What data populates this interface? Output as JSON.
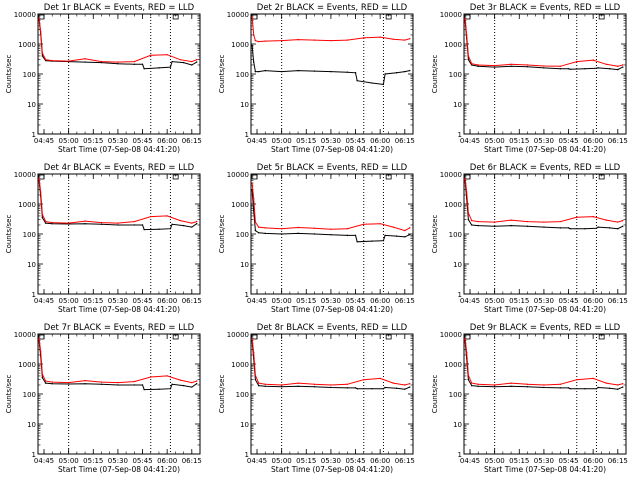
{
  "layout_title": "",
  "common": {
    "xlabel": "Start Time (07-Sep-08 04:41:20)",
    "ylabel": "Counts/sec",
    "x_tick_labels": [
      "04:45",
      "05:00",
      "05:15",
      "05:30",
      "05:45",
      "06:00",
      "06:15"
    ],
    "y_tick_labels": [
      "1",
      "10",
      "100",
      "1000",
      "10000"
    ],
    "colors": {
      "events": "#000000",
      "lld": "#ff0000",
      "axes": "#000000"
    }
  },
  "chart_data": [
    {
      "type": "line",
      "title": "Det 1r BLACK = Events, RED = LLD",
      "xlabel": "Start Time (07-Sep-08 04:41:20)",
      "ylabel": "Counts/sec",
      "x_range": [
        "04:41:20",
        "06:20:00"
      ],
      "ylim": [
        1,
        10000
      ],
      "log_y": true,
      "vertical_dotted_lines": [
        "05:00",
        "05:50",
        "06:02"
      ],
      "series": [
        {
          "name": "Events",
          "color": "#000000",
          "x": [
            "04:42",
            "04:43",
            "04:44",
            "04:46",
            "04:50",
            "05:00",
            "05:10",
            "05:20",
            "05:30",
            "05:40",
            "05:45",
            "05:46",
            "05:55",
            "06:02",
            "06:03",
            "06:10",
            "06:15",
            "06:18"
          ],
          "values": [
            6500,
            2200,
            400,
            280,
            270,
            260,
            250,
            240,
            220,
            210,
            210,
            150,
            160,
            170,
            260,
            240,
            200,
            250
          ]
        },
        {
          "name": "LLD",
          "color": "#ff0000",
          "x": [
            "04:42",
            "04:43",
            "04:44",
            "04:46",
            "04:50",
            "05:00",
            "05:10",
            "05:20",
            "05:30",
            "05:40",
            "05:50",
            "06:00",
            "06:08",
            "06:15",
            "06:18"
          ],
          "values": [
            7000,
            2600,
            500,
            300,
            280,
            270,
            320,
            260,
            250,
            260,
            420,
            440,
            300,
            260,
            300
          ]
        }
      ]
    },
    {
      "type": "line",
      "title": "Det 2r BLACK = Events, RED = LLD",
      "xlabel": "Start Time (07-Sep-08 04:41:20)",
      "ylabel": "Counts/sec",
      "x_range": [
        "04:41:20",
        "06:20:00"
      ],
      "ylim": [
        1,
        10000
      ],
      "log_y": true,
      "vertical_dotted_lines": [
        "05:00",
        "05:50",
        "06:02"
      ],
      "series": [
        {
          "name": "Events",
          "color": "#000000",
          "x": [
            "04:42",
            "04:43",
            "04:44",
            "04:46",
            "04:50",
            "05:00",
            "05:10",
            "05:20",
            "05:30",
            "05:40",
            "05:45",
            "05:46",
            "05:55",
            "06:02",
            "06:03",
            "06:10",
            "06:15",
            "06:18"
          ],
          "values": [
            900,
            250,
            120,
            120,
            130,
            120,
            130,
            125,
            120,
            115,
            110,
            60,
            50,
            45,
            100,
            110,
            120,
            130
          ]
        },
        {
          "name": "LLD",
          "color": "#ff0000",
          "x": [
            "04:42",
            "04:43",
            "04:44",
            "04:46",
            "04:50",
            "05:00",
            "05:10",
            "05:20",
            "05:30",
            "05:40",
            "05:50",
            "06:00",
            "06:08",
            "06:15",
            "06:18"
          ],
          "values": [
            8000,
            2000,
            1300,
            1200,
            1250,
            1300,
            1400,
            1350,
            1300,
            1350,
            1600,
            1700,
            1450,
            1350,
            1500
          ]
        }
      ]
    },
    {
      "type": "line",
      "title": "Det 3r BLACK = Events, RED = LLD",
      "xlabel": "Start Time (07-Sep-08 04:41:20)",
      "ylabel": "Counts/sec",
      "x_range": [
        "04:41:20",
        "06:20:00"
      ],
      "ylim": [
        1,
        10000
      ],
      "log_y": true,
      "vertical_dotted_lines": [
        "05:00",
        "05:50",
        "06:02"
      ],
      "series": [
        {
          "name": "Events",
          "color": "#000000",
          "x": [
            "04:42",
            "04:43",
            "04:44",
            "04:46",
            "04:50",
            "05:00",
            "05:10",
            "05:20",
            "05:30",
            "05:40",
            "05:45",
            "05:46",
            "05:55",
            "06:02",
            "06:03",
            "06:10",
            "06:15",
            "06:18"
          ],
          "values": [
            6000,
            1500,
            300,
            200,
            180,
            170,
            180,
            175,
            160,
            150,
            150,
            145,
            150,
            155,
            160,
            150,
            140,
            170
          ]
        },
        {
          "name": "LLD",
          "color": "#ff0000",
          "x": [
            "04:42",
            "04:43",
            "04:44",
            "04:46",
            "04:50",
            "05:00",
            "05:10",
            "05:20",
            "05:30",
            "05:40",
            "05:50",
            "06:00",
            "06:08",
            "06:15",
            "06:18"
          ],
          "values": [
            7000,
            2000,
            400,
            220,
            200,
            190,
            210,
            200,
            185,
            180,
            260,
            290,
            210,
            180,
            200
          ]
        }
      ]
    },
    {
      "type": "line",
      "title": "Det 4r BLACK = Events, RED = LLD",
      "xlabel": "Start Time (07-Sep-08 04:41:20)",
      "ylabel": "Counts/sec",
      "x_range": [
        "04:41:20",
        "06:20:00"
      ],
      "ylim": [
        1,
        10000
      ],
      "log_y": true,
      "vertical_dotted_lines": [
        "05:00",
        "05:50",
        "06:02"
      ],
      "series": [
        {
          "name": "Events",
          "color": "#000000",
          "x": [
            "04:42",
            "04:43",
            "04:44",
            "04:46",
            "04:50",
            "05:00",
            "05:10",
            "05:20",
            "05:30",
            "05:40",
            "05:45",
            "05:46",
            "05:55",
            "06:02",
            "06:03",
            "06:10",
            "06:15",
            "06:18"
          ],
          "values": [
            6000,
            1800,
            350,
            230,
            220,
            215,
            220,
            210,
            200,
            200,
            200,
            140,
            145,
            150,
            210,
            190,
            170,
            220
          ]
        },
        {
          "name": "LLD",
          "color": "#ff0000",
          "x": [
            "04:42",
            "04:43",
            "04:44",
            "04:46",
            "04:50",
            "05:00",
            "05:10",
            "05:20",
            "05:30",
            "05:40",
            "05:50",
            "06:00",
            "06:08",
            "06:15",
            "06:18"
          ],
          "values": [
            7000,
            2500,
            450,
            260,
            240,
            230,
            270,
            240,
            230,
            260,
            380,
            400,
            280,
            230,
            260
          ]
        }
      ]
    },
    {
      "type": "line",
      "title": "Det 5r BLACK = Events, RED = LLD",
      "xlabel": "Start Time (07-Sep-08 04:41:20)",
      "ylabel": "Counts/sec",
      "x_range": [
        "04:41:20",
        "06:20:00"
      ],
      "ylim": [
        1,
        10000
      ],
      "log_y": true,
      "vertical_dotted_lines": [
        "05:00",
        "05:50",
        "06:02"
      ],
      "series": [
        {
          "name": "Events",
          "color": "#000000",
          "x": [
            "04:42",
            "04:43",
            "04:44",
            "04:46",
            "04:50",
            "05:00",
            "05:10",
            "05:20",
            "05:30",
            "05:40",
            "05:45",
            "05:46",
            "05:55",
            "06:02",
            "06:03",
            "06:10",
            "06:15",
            "06:18"
          ],
          "values": [
            3000,
            600,
            130,
            110,
            105,
            100,
            105,
            100,
            95,
            90,
            90,
            55,
            58,
            60,
            90,
            85,
            80,
            95
          ]
        },
        {
          "name": "LLD",
          "color": "#ff0000",
          "x": [
            "04:42",
            "04:43",
            "04:44",
            "04:46",
            "04:50",
            "05:00",
            "05:10",
            "05:20",
            "05:30",
            "05:40",
            "05:50",
            "06:00",
            "06:08",
            "06:15",
            "06:18"
          ],
          "values": [
            5000,
            1500,
            250,
            170,
            160,
            150,
            165,
            155,
            145,
            150,
            210,
            220,
            170,
            130,
            160
          ]
        }
      ]
    },
    {
      "type": "line",
      "title": "Det 6r BLACK = Events, RED = LLD",
      "xlabel": "Start Time (07-Sep-08 04:41:20)",
      "ylabel": "Counts/sec",
      "x_range": [
        "04:41:20",
        "06:20:00"
      ],
      "ylim": [
        1,
        10000
      ],
      "log_y": true,
      "vertical_dotted_lines": [
        "05:00",
        "05:50",
        "06:02"
      ],
      "series": [
        {
          "name": "Events",
          "color": "#000000",
          "x": [
            "04:42",
            "04:43",
            "04:44",
            "04:46",
            "04:50",
            "05:00",
            "05:10",
            "05:20",
            "05:30",
            "05:40",
            "05:45",
            "05:46",
            "05:55",
            "06:02",
            "06:03",
            "06:10",
            "06:15",
            "06:18"
          ],
          "values": [
            6000,
            1500,
            300,
            200,
            190,
            180,
            190,
            180,
            170,
            160,
            160,
            150,
            150,
            155,
            170,
            160,
            150,
            180
          ]
        },
        {
          "name": "LLD",
          "color": "#ff0000",
          "x": [
            "04:42",
            "04:43",
            "04:44",
            "04:46",
            "04:50",
            "05:00",
            "05:10",
            "05:20",
            "05:30",
            "05:40",
            "05:50",
            "06:00",
            "06:08",
            "06:15",
            "06:18"
          ],
          "values": [
            7000,
            2500,
            500,
            280,
            260,
            250,
            290,
            260,
            250,
            260,
            360,
            380,
            290,
            250,
            280
          ]
        }
      ]
    },
    {
      "type": "line",
      "title": "Det 7r BLACK = Events, RED = LLD",
      "xlabel": "Start Time (07-Sep-08 04:41:20)",
      "ylabel": "Counts/sec",
      "x_range": [
        "04:41:20",
        "06:20:00"
      ],
      "ylim": [
        1,
        10000
      ],
      "log_y": true,
      "vertical_dotted_lines": [
        "05:00",
        "05:50",
        "06:02"
      ],
      "series": [
        {
          "name": "Events",
          "color": "#000000",
          "x": [
            "04:42",
            "04:43",
            "04:44",
            "04:46",
            "04:50",
            "05:00",
            "05:10",
            "05:20",
            "05:30",
            "05:40",
            "05:45",
            "05:46",
            "05:55",
            "06:02",
            "06:03",
            "06:10",
            "06:15",
            "06:18"
          ],
          "values": [
            6000,
            1800,
            350,
            230,
            220,
            215,
            220,
            210,
            200,
            200,
            200,
            140,
            145,
            150,
            210,
            190,
            170,
            220
          ]
        },
        {
          "name": "LLD",
          "color": "#ff0000",
          "x": [
            "04:42",
            "04:43",
            "04:44",
            "04:46",
            "04:50",
            "05:00",
            "05:10",
            "05:20",
            "05:30",
            "05:40",
            "05:50",
            "06:00",
            "06:08",
            "06:15",
            "06:18"
          ],
          "values": [
            7000,
            2600,
            450,
            270,
            250,
            240,
            280,
            250,
            240,
            260,
            370,
            400,
            290,
            240,
            270
          ]
        }
      ]
    },
    {
      "type": "line",
      "title": "Det 8r BLACK = Events, RED = LLD",
      "xlabel": "Start Time (07-Sep-08 04:41:20)",
      "ylabel": "Counts/sec",
      "x_range": [
        "04:41:20",
        "06:20:00"
      ],
      "ylim": [
        1,
        10000
      ],
      "log_y": true,
      "vertical_dotted_lines": [
        "05:00",
        "05:50",
        "06:02"
      ],
      "series": [
        {
          "name": "Events",
          "color": "#000000",
          "x": [
            "04:42",
            "04:43",
            "04:44",
            "04:46",
            "04:50",
            "05:00",
            "05:10",
            "05:20",
            "05:30",
            "05:40",
            "05:45",
            "05:46",
            "05:55",
            "06:02",
            "06:03",
            "06:10",
            "06:15",
            "06:18"
          ],
          "values": [
            6000,
            1500,
            300,
            190,
            180,
            175,
            180,
            175,
            165,
            160,
            160,
            150,
            150,
            150,
            165,
            155,
            145,
            170
          ]
        },
        {
          "name": "LLD",
          "color": "#ff0000",
          "x": [
            "04:42",
            "04:43",
            "04:44",
            "04:46",
            "04:50",
            "05:00",
            "05:10",
            "05:20",
            "05:30",
            "05:40",
            "05:50",
            "06:00",
            "06:08",
            "06:15",
            "06:18"
          ],
          "values": [
            7000,
            2400,
            420,
            230,
            210,
            200,
            230,
            210,
            200,
            210,
            300,
            330,
            230,
            200,
            220
          ]
        }
      ]
    },
    {
      "type": "line",
      "title": "Det 9r BLACK = Events, RED = LLD",
      "xlabel": "Start Time (07-Sep-08 04:41:20)",
      "ylabel": "Counts/sec",
      "x_range": [
        "04:41:20",
        "06:20:00"
      ],
      "ylim": [
        1,
        10000
      ],
      "log_y": true,
      "vertical_dotted_lines": [
        "05:00",
        "05:50",
        "06:02"
      ],
      "series": [
        {
          "name": "Events",
          "color": "#000000",
          "x": [
            "04:42",
            "04:43",
            "04:44",
            "04:46",
            "04:50",
            "05:00",
            "05:10",
            "05:20",
            "05:30",
            "05:40",
            "05:45",
            "05:46",
            "05:55",
            "06:02",
            "06:03",
            "06:10",
            "06:15",
            "06:18"
          ],
          "values": [
            6000,
            1500,
            300,
            190,
            180,
            175,
            180,
            175,
            165,
            160,
            160,
            150,
            150,
            150,
            165,
            155,
            145,
            170
          ]
        },
        {
          "name": "LLD",
          "color": "#ff0000",
          "x": [
            "04:42",
            "04:43",
            "04:44",
            "04:46",
            "04:50",
            "05:00",
            "05:10",
            "05:20",
            "05:30",
            "05:40",
            "05:50",
            "06:00",
            "06:08",
            "06:15",
            "06:18"
          ],
          "values": [
            7000,
            2400,
            420,
            230,
            210,
            200,
            230,
            210,
            200,
            210,
            300,
            330,
            230,
            200,
            220
          ]
        }
      ]
    }
  ]
}
